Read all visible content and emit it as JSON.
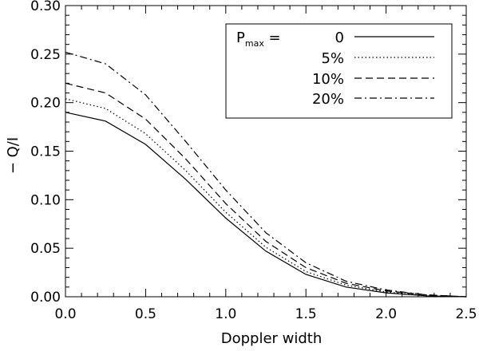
{
  "chart_data": {
    "type": "line",
    "title": "",
    "xlabel": "Doppler width",
    "ylabel": "− Q/I",
    "xlim": [
      0.0,
      2.5
    ],
    "ylim": [
      0.0,
      0.3
    ],
    "xticks": [
      "0.0",
      "0.5",
      "1.0",
      "1.5",
      "2.0",
      "2.5"
    ],
    "yticks": [
      "0.00",
      "0.05",
      "0.10",
      "0.15",
      "0.20",
      "0.25",
      "0.30"
    ],
    "grid": false,
    "legend_position": "top-right",
    "legend_title": {
      "main": "P",
      "sub": "max",
      "suffix": " = "
    },
    "x": [
      0.0,
      0.25,
      0.5,
      0.75,
      1.0,
      1.25,
      1.5,
      1.75,
      2.0,
      2.25,
      2.5
    ],
    "series": [
      {
        "name": "0",
        "style": "solid",
        "values": [
          0.19,
          0.181,
          0.157,
          0.121,
          0.081,
          0.047,
          0.023,
          0.01,
          0.004,
          0.001,
          0.0
        ]
      },
      {
        "name": "5%",
        "style": "dotted",
        "values": [
          0.204,
          0.194,
          0.168,
          0.13,
          0.087,
          0.051,
          0.026,
          0.012,
          0.005,
          0.001,
          0.0
        ]
      },
      {
        "name": "10%",
        "style": "dashed",
        "values": [
          0.22,
          0.21,
          0.183,
          0.142,
          0.096,
          0.057,
          0.03,
          0.014,
          0.006,
          0.002,
          0.0
        ]
      },
      {
        "name": "20%",
        "style": "dashdot",
        "values": [
          0.252,
          0.24,
          0.208,
          0.16,
          0.11,
          0.066,
          0.035,
          0.016,
          0.007,
          0.002,
          0.0
        ]
      }
    ]
  }
}
